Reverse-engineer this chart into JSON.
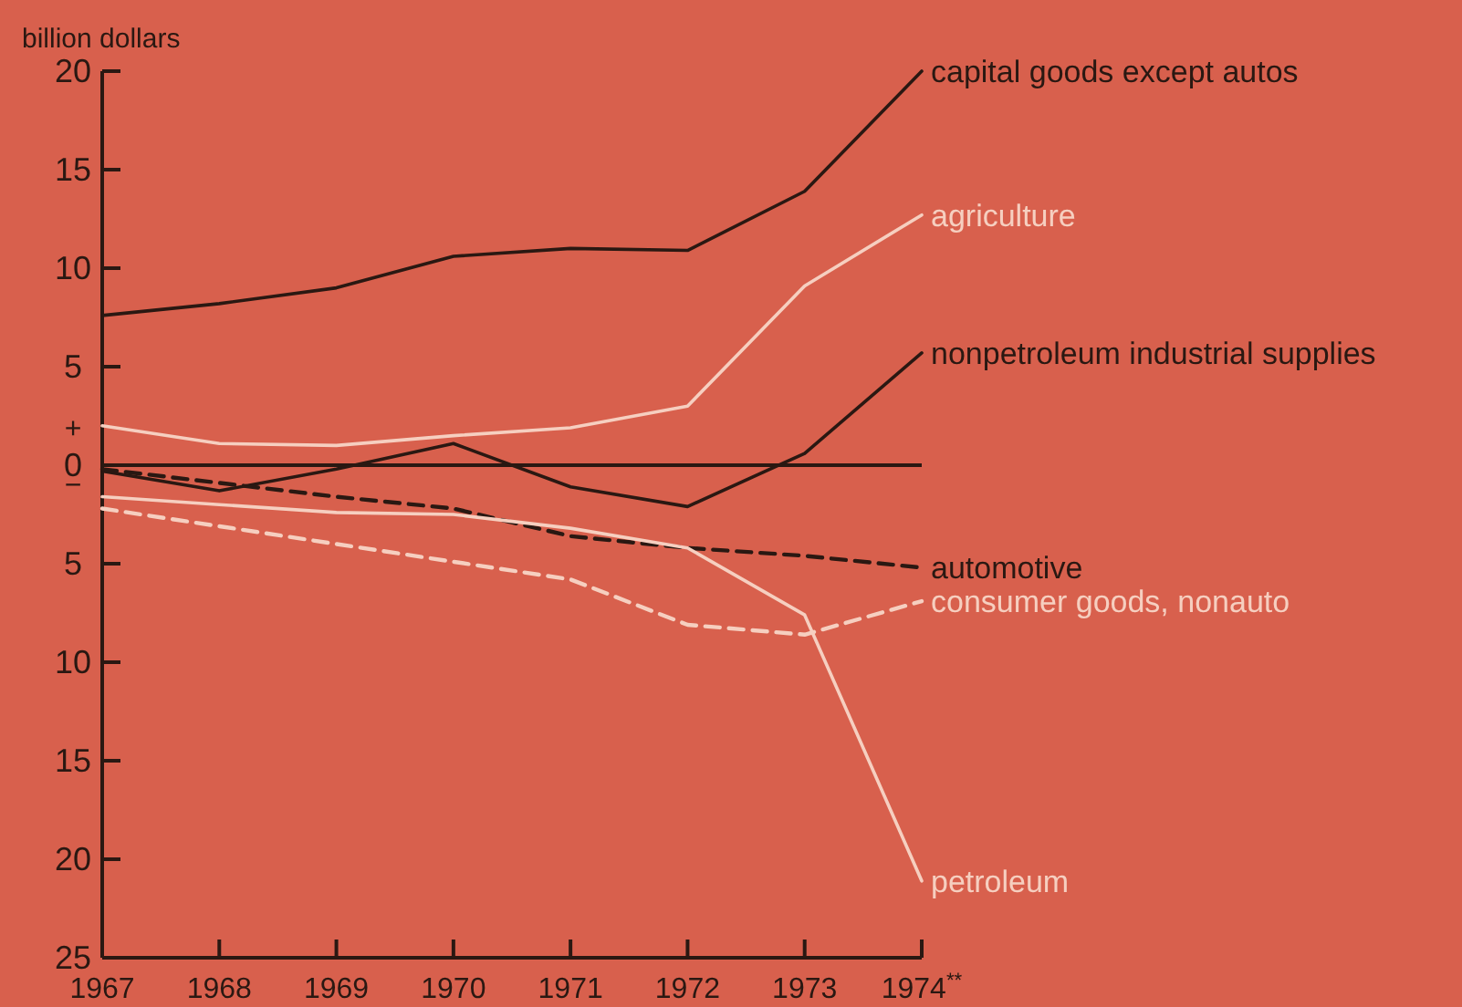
{
  "chart_data": {
    "type": "line",
    "ylabel": "billion dollars",
    "x": [
      1967,
      1968,
      1969,
      1970,
      1971,
      1972,
      1973,
      1974
    ],
    "xlim": [
      1967,
      1974
    ],
    "xticks": [
      1967,
      1968,
      1969,
      1970,
      1971,
      1972,
      1973,
      {
        "value": 1974,
        "label": "1974$^{**}$"
      }
    ],
    "ylim": [
      -25,
      20
    ],
    "yticks": [
      20,
      15,
      10,
      5,
      0,
      {
        "value": -5,
        "label": "5"
      },
      {
        "value": -10,
        "label": "10"
      },
      {
        "value": -15,
        "label": "15"
      },
      {
        "value": -20,
        "label": "20"
      },
      {
        "value": -25,
        "label": "25"
      }
    ],
    "series": [
      {
        "name": "capital goods except autos",
        "color": "#2a1812",
        "line_style": "solid",
        "values": [
          7.6,
          8.2,
          9.0,
          10.6,
          11.0,
          10.9,
          13.9,
          20
        ]
      },
      {
        "name": "agriculture",
        "color": "#f6cfc0",
        "line_style": "solid",
        "values": [
          2.0,
          1.1,
          1.0,
          1.5,
          1.9,
          3.0,
          9.1,
          12.7
        ]
      },
      {
        "name": "nonpetroleum industrial supplies",
        "color": "#2a1812",
        "line_style": "solid",
        "values": [
          -0.3,
          -1.3,
          -0.2,
          1.1,
          -1.1,
          -2.1,
          0.6,
          5.7
        ]
      },
      {
        "name": "automotive",
        "color": "#2a1812",
        "line_style": "dashed",
        "values": [
          -0.2,
          -0.9,
          -1.6,
          -2.2,
          -3.6,
          -4.2,
          -4.6,
          -5.2
        ]
      },
      {
        "name": "consumer goods, nonauto",
        "color": "#f6cfc0",
        "line_style": "dashed",
        "values": [
          -2.2,
          -3.1,
          -4.0,
          -4.9,
          -5.8,
          -8.1,
          -8.6,
          -6.9
        ]
      },
      {
        "name": "petroleum",
        "color": "#f6cfc0",
        "line_style": "solid",
        "values": [
          -1.6,
          -2.0,
          -2.4,
          -2.5,
          -3.2,
          -4.2,
          -7.6,
          -21.1
        ]
      }
    ],
    "ref_lines": [
      {
        "axis": "y",
        "value": 0,
        "color": "#2a1812"
      }
    ],
    "annotations": [
      "+",
      "−"
    ],
    "grid": false
  }
}
